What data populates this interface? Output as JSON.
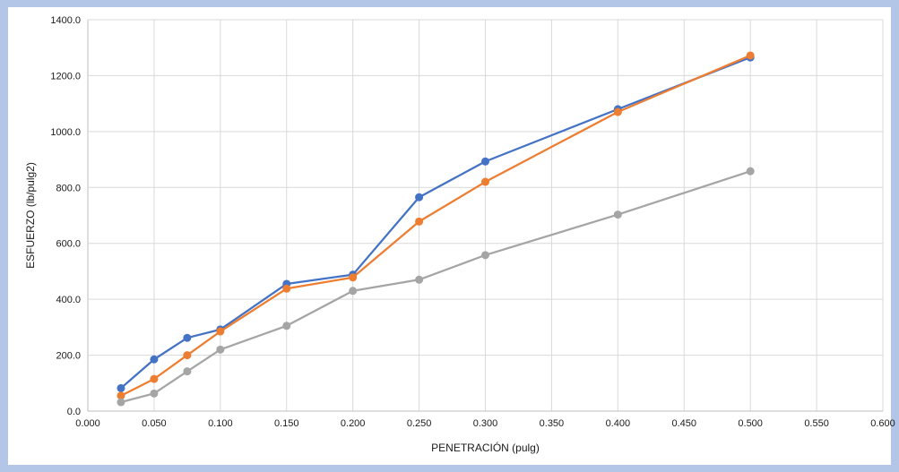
{
  "chart_data": {
    "type": "line",
    "title": "",
    "xlabel": "PENETRACIÓN (pulg)",
    "ylabel": "ESFUERZO (lb/pulg2)",
    "xlim": [
      0,
      0.6
    ],
    "ylim": [
      0,
      1400
    ],
    "x_ticks": [
      "0.000",
      "0.050",
      "0.100",
      "0.150",
      "0.200",
      "0.250",
      "0.300",
      "0.350",
      "0.400",
      "0.450",
      "0.500",
      "0.550",
      "0.600"
    ],
    "y_ticks": [
      "0.0",
      "200.0",
      "400.0",
      "600.0",
      "800.0",
      "1000.0",
      "1200.0",
      "1400.0"
    ],
    "grid": true,
    "x": [
      0.025,
      0.05,
      0.075,
      0.1,
      0.15,
      0.2,
      0.25,
      0.3,
      0.4,
      0.5
    ],
    "series": [
      {
        "color": "#4472c4",
        "values": [
          82,
          185,
          262,
          292,
          455,
          488,
          765,
          893,
          1080,
          1265
        ]
      },
      {
        "color": "#ed7d31",
        "values": [
          55,
          115,
          200,
          285,
          438,
          478,
          678,
          820,
          1070,
          1272
        ]
      },
      {
        "color": "#a5a5a5",
        "values": [
          32,
          63,
          142,
          220,
          305,
          430,
          470,
          558,
          703,
          858
        ]
      }
    ]
  }
}
